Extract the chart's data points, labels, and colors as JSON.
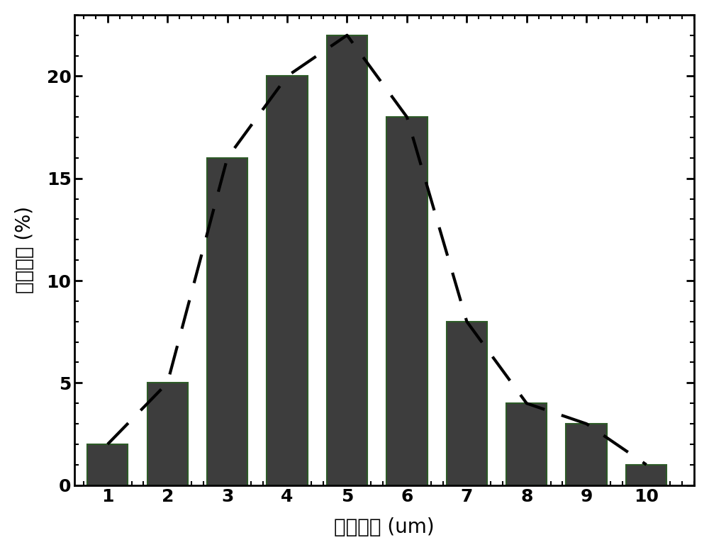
{
  "categories": [
    1,
    2,
    3,
    4,
    5,
    6,
    7,
    8,
    9,
    10
  ],
  "values": [
    2,
    5,
    16,
    20,
    22,
    18,
    8,
    4,
    3,
    1
  ],
  "bar_color": "#3d3d3d",
  "bar_edgecolor": "#2d5a27",
  "dashed_line_color": "#000000",
  "xlabel": "粒径大小 (um)",
  "ylabel": "尺寸分布 (%)",
  "xlim": [
    0.45,
    10.8
  ],
  "ylim": [
    0,
    23
  ],
  "yticks": [
    0,
    5,
    10,
    15,
    20
  ],
  "xticks": [
    1,
    2,
    3,
    4,
    5,
    6,
    7,
    8,
    9,
    10
  ],
  "background_color": "#ffffff",
  "figsize": [
    10.0,
    7.79
  ],
  "dpi": 100,
  "bar_width": 0.68,
  "xlabel_fontsize": 20,
  "ylabel_fontsize": 20,
  "tick_fontsize": 18,
  "spine_linewidth": 2.0,
  "line_linewidth": 3.0,
  "bar_edgewidth": 1.5
}
